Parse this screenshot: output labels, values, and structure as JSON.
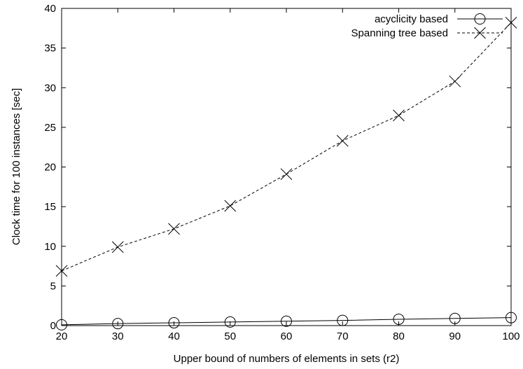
{
  "chart_data": {
    "type": "line",
    "xlabel": "Upper bound of numbers of elements in sets (r2)",
    "ylabel": "Clock time for 100 instances [sec]",
    "xlim": [
      20,
      100
    ],
    "ylim": [
      0,
      40
    ],
    "x_ticks": [
      "20",
      "30",
      "40",
      "50",
      "60",
      "70",
      "80",
      "90",
      "100"
    ],
    "y_ticks": [
      "0",
      "5",
      "10",
      "15",
      "20",
      "25",
      "30",
      "35",
      "40"
    ],
    "grid": false,
    "legend_position": "top-right",
    "x": [
      20,
      30,
      40,
      50,
      60,
      70,
      80,
      90,
      100
    ],
    "series": [
      {
        "name": "acyclicity based",
        "marker": "circle",
        "line_style": "solid",
        "values": [
          0.1,
          0.25,
          0.35,
          0.45,
          0.55,
          0.65,
          0.8,
          0.9,
          1.0
        ]
      },
      {
        "name": "Spanning tree based",
        "marker": "x",
        "line_style": "dashed",
        "values": [
          6.9,
          9.9,
          12.2,
          15.1,
          19.1,
          23.3,
          26.5,
          30.8,
          38.2
        ]
      }
    ]
  }
}
